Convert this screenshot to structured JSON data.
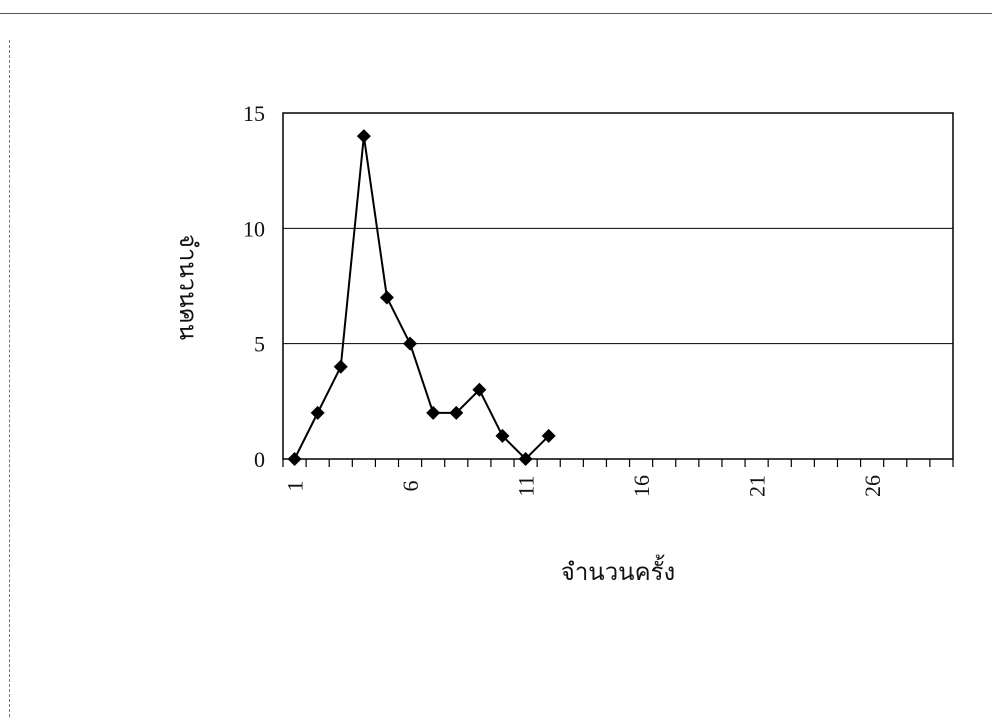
{
  "chart_data": {
    "type": "line",
    "xlabel": "จำนวนครั้ง",
    "ylabel": "จำนวนคน",
    "xlim": [
      0.5,
      29.5
    ],
    "ylim": [
      0,
      15
    ],
    "x_ticks": [
      1,
      6,
      11,
      16,
      21,
      26
    ],
    "y_ticks": [
      0,
      5,
      10,
      15
    ],
    "grid": "horizontal",
    "marker": "diamond",
    "color": "#000000",
    "series": [
      {
        "x": [
          1,
          2,
          3,
          4,
          5,
          6,
          7,
          8,
          9,
          10,
          11,
          12
        ],
        "values": [
          0,
          2,
          4,
          14,
          7,
          5,
          2,
          2,
          3,
          1,
          0,
          1
        ]
      }
    ]
  }
}
